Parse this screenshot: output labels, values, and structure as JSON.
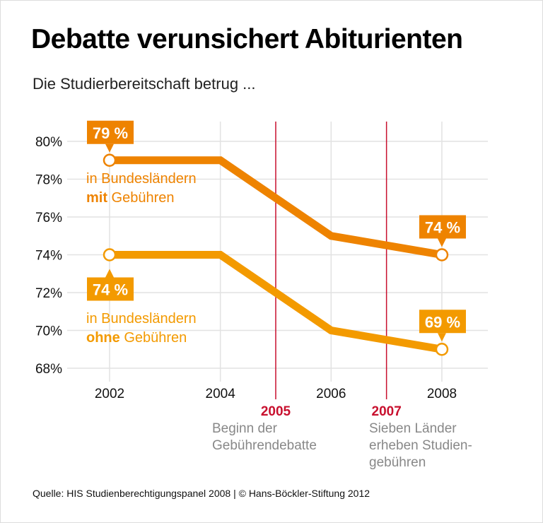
{
  "chart_data": {
    "type": "line",
    "title": "Debatte verunsichert Abiturienten",
    "subtitle": "Die Studierbereitschaft betrug ...",
    "x": [
      2002,
      2004,
      2006,
      2008
    ],
    "x_tick_labels": [
      "2002",
      "2004",
      "2006",
      "2008"
    ],
    "y_tick_labels": [
      "80%",
      "78%",
      "76%",
      "74%",
      "72%",
      "70%",
      "68%"
    ],
    "y_ticks": [
      80,
      78,
      76,
      74,
      72,
      70,
      68
    ],
    "ylim": [
      68,
      80
    ],
    "xlim": [
      2002,
      2008
    ],
    "grid": true,
    "series": [
      {
        "name_parts": [
          "in Bundesländern",
          "mit",
          "Gebühren"
        ],
        "values": [
          79,
          79,
          75,
          74
        ],
        "color": "#EE8300",
        "start_label": "79 %",
        "end_label": "74 %"
      },
      {
        "name_parts": [
          "in Bundesländern",
          "ohne",
          "Gebühren"
        ],
        "values": [
          74,
          74,
          70,
          69
        ],
        "color": "#F39A00",
        "start_label": "74 %",
        "end_label": "69 %"
      }
    ],
    "events": [
      {
        "year": 2005,
        "label": "2005",
        "text": [
          "Beginn der",
          "Gebührendebatte"
        ]
      },
      {
        "year": 2007,
        "label": "2007",
        "text": [
          "Sieben Länder",
          "erheben Studien-",
          "gebühren"
        ]
      }
    ],
    "event_color": "#C8102E",
    "source": "Quelle: HIS Studienberechtigungspanel 2008 | © Hans-Böckler-Stiftung 2012"
  }
}
